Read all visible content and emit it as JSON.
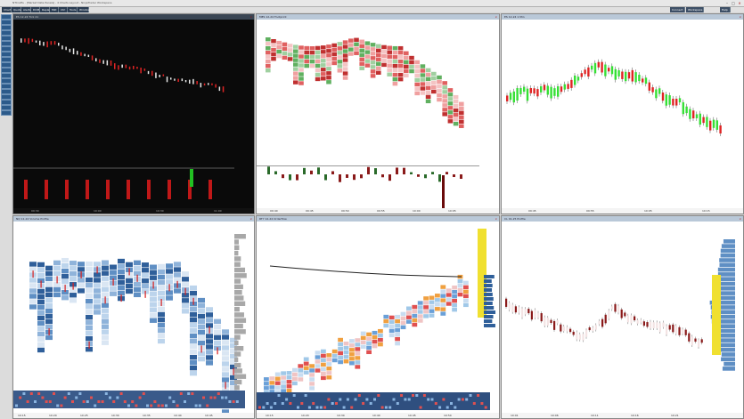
{
  "window": {
    "title": "NTCrafts - [Market Data Panels] - 4 Charts Layout - NinjaTrader Workspace"
  },
  "menubar": {
    "left": [
      "Chart",
      "Quotes",
      "Alerts",
      "DOM",
      "Replay",
      "Mkt",
      "Ctrl",
      "Tools",
      "Window"
    ],
    "right": [
      "Connect",
      "Workspace",
      "Help"
    ]
  },
  "panels": [
    {
      "id": "p1",
      "title": "ES 12-24 Tick 21",
      "x_ticks": [
        "09:30",
        "10:00",
        "10:30",
        "11:00"
      ]
    },
    {
      "id": "p2",
      "title": "MES 12-24 Footprint",
      "x_ticks": [
        "09:40",
        "09:45",
        "09:50",
        "09:55",
        "10:00",
        "10:05"
      ]
    },
    {
      "id": "p3",
      "title": "ES 12-24 1 Min",
      "x_ticks": [
        "09:45",
        "09:55",
        "10:05",
        "10:15"
      ]
    },
    {
      "id": "p4",
      "title": "NQ 12-24 Volume Profile",
      "x_ticks": [
        "10:15",
        "10:20",
        "10:25",
        "10:30",
        "10:35",
        "10:40",
        "10:45"
      ]
    },
    {
      "id": "p5",
      "title": "RTY 12-24 Orderflow",
      "x_ticks": [
        "10:15",
        "10:20",
        "10:30",
        "10:40",
        "10:45",
        "10:50"
      ]
    },
    {
      "id": "p6",
      "title": "CL 01-25 Profile",
      "x_ticks": [
        "10:01",
        "10:06",
        "10:11",
        "10:16",
        "10:21"
      ]
    }
  ]
}
